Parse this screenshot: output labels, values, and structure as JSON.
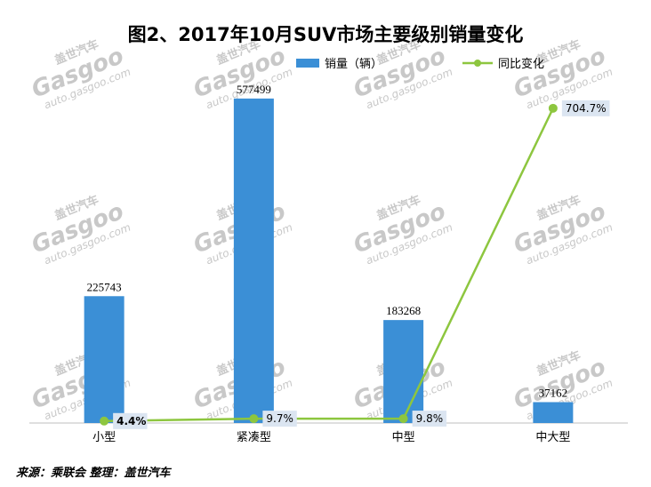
{
  "title": "图2、2017年10月SUV市场主要级别销量变化",
  "legend": {
    "bar_label": "销量（辆）",
    "line_label": "同比变化"
  },
  "source": "来源：乘联会    整理：盖世汽车",
  "watermark": {
    "brand": "Gasgoo",
    "cn": "盖世汽车",
    "url": "auto.gasgoo.com"
  },
  "colors": {
    "bar": "#3b8fd6",
    "line": "#8dc63f",
    "label_box": "#dbe5f1"
  },
  "chart_data": {
    "type": "bar",
    "title": "图2、2017年10月SUV市场主要级别销量变化",
    "categories": [
      "小型",
      "紧凑型",
      "中型",
      "中大型"
    ],
    "series": [
      {
        "name": "销量（辆）",
        "type": "bar",
        "axis": "left",
        "values": [
          225743,
          577499,
          183268,
          37162
        ]
      },
      {
        "name": "同比变化",
        "type": "line",
        "axis": "right",
        "values": [
          4.4,
          9.7,
          9.8,
          704.7
        ],
        "labels": [
          "4.4%",
          "9.7%",
          "9.8%",
          "704.7%"
        ]
      }
    ],
    "ylim_left": [
      0,
      620000
    ],
    "ylim_right": [
      0,
      780
    ],
    "legend_position": "top-right",
    "grid": false
  }
}
